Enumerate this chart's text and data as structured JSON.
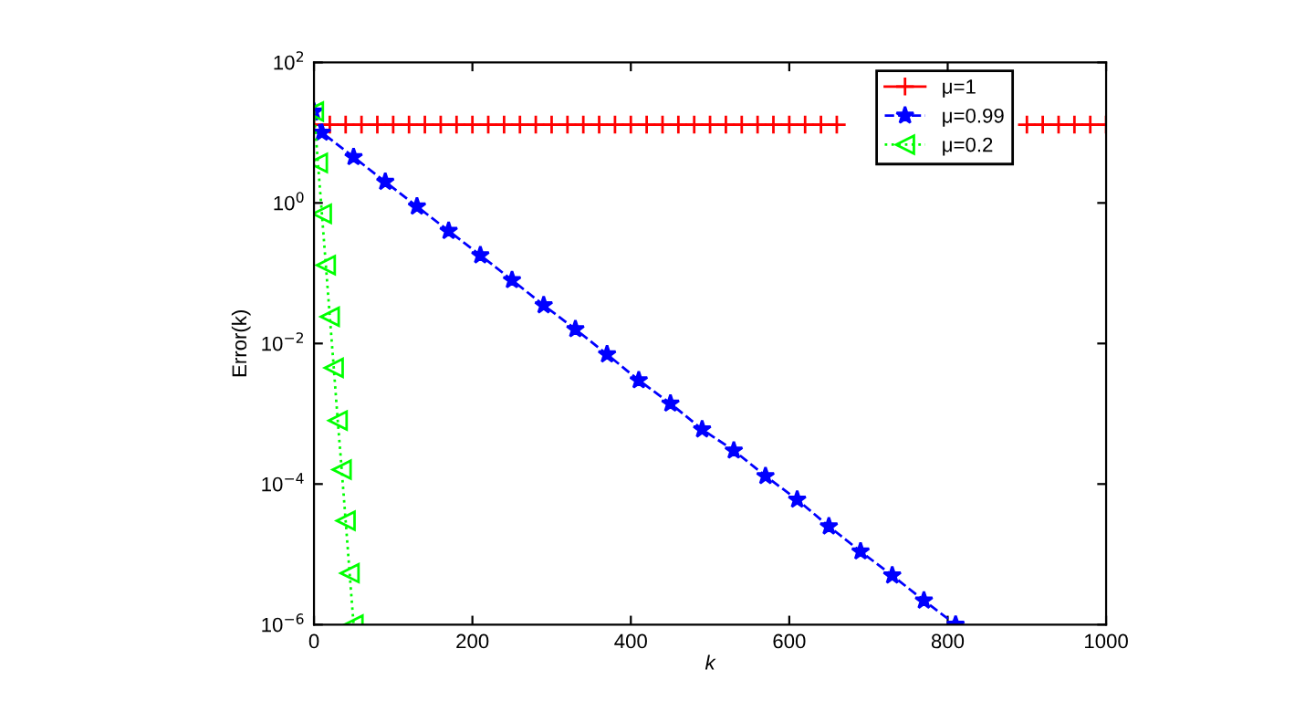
{
  "chart_data": {
    "type": "line",
    "xlabel": "k",
    "ylabel": "Error(k)",
    "log": "y",
    "xlim": [
      0,
      1000
    ],
    "xticks": [
      0,
      200,
      400,
      600,
      800,
      1000
    ],
    "ylim": [
      1e-06,
      100
    ],
    "yticks": [
      {
        "value": 1e-06,
        "label": "10$^{−6}$"
      },
      {
        "value": 0.0001,
        "label": "10$^{−4}$"
      },
      {
        "value": 0.01,
        "label": "10$^{−2}$"
      },
      {
        "value": 1,
        "label": "10$^{0}$"
      },
      {
        "value": 100,
        "label": "10$^{2}$"
      }
    ],
    "legend": "top right",
    "grid": false,
    "series": [
      {
        "name": "μ=1",
        "color": "#ff0000",
        "marker": "cross",
        "line_style": "solid",
        "x": [
          0,
          20,
          40,
          60,
          80,
          100,
          120,
          140,
          160,
          180,
          200,
          220,
          240,
          260,
          280,
          300,
          320,
          340,
          360,
          380,
          400,
          420,
          440,
          460,
          480,
          500,
          520,
          540,
          560,
          580,
          600,
          620,
          640,
          660,
          680,
          700,
          720,
          740,
          760,
          780,
          800,
          820,
          840,
          860,
          880,
          900,
          920,
          940,
          960,
          980,
          1000
        ],
        "values": [
          13,
          13,
          13,
          13,
          13,
          13,
          13,
          13,
          13,
          13,
          13,
          13,
          13,
          13,
          13,
          13,
          13,
          13,
          13,
          13,
          13,
          13,
          13,
          13,
          13,
          13,
          13,
          13,
          13,
          13,
          13,
          13,
          13,
          13,
          null,
          null,
          null,
          null,
          null,
          null,
          null,
          null,
          null,
          null,
          null,
          13,
          13,
          13,
          13,
          13,
          13
        ]
      },
      {
        "name": "μ=0.99",
        "color": "#0000ff",
        "marker": "star",
        "line_style": "dashed",
        "x": [
          0,
          10,
          50,
          90,
          130,
          170,
          210,
          250,
          290,
          330,
          370,
          410,
          450,
          490,
          530,
          570,
          610,
          650,
          690,
          730,
          770,
          810
        ],
        "values": [
          20,
          10,
          4.5,
          2.0,
          0.89,
          0.4,
          0.18,
          0.08,
          0.035,
          0.016,
          0.007,
          0.003,
          0.0014,
          0.0006,
          0.0003,
          0.00013,
          6e-05,
          2.5e-05,
          1.1e-05,
          5e-06,
          2.2e-06,
          1e-06
        ]
      },
      {
        "name": "μ=0.2",
        "color": "#00ff00",
        "marker": "triangle",
        "line_style": "dotted",
        "x": [
          0,
          5,
          10,
          15,
          20,
          25,
          30,
          35,
          40,
          45,
          50
        ],
        "values": [
          20,
          3.7,
          0.7,
          0.13,
          0.024,
          0.0045,
          0.0008,
          0.00016,
          3e-05,
          5.4e-06,
          1e-06
        ]
      }
    ]
  }
}
